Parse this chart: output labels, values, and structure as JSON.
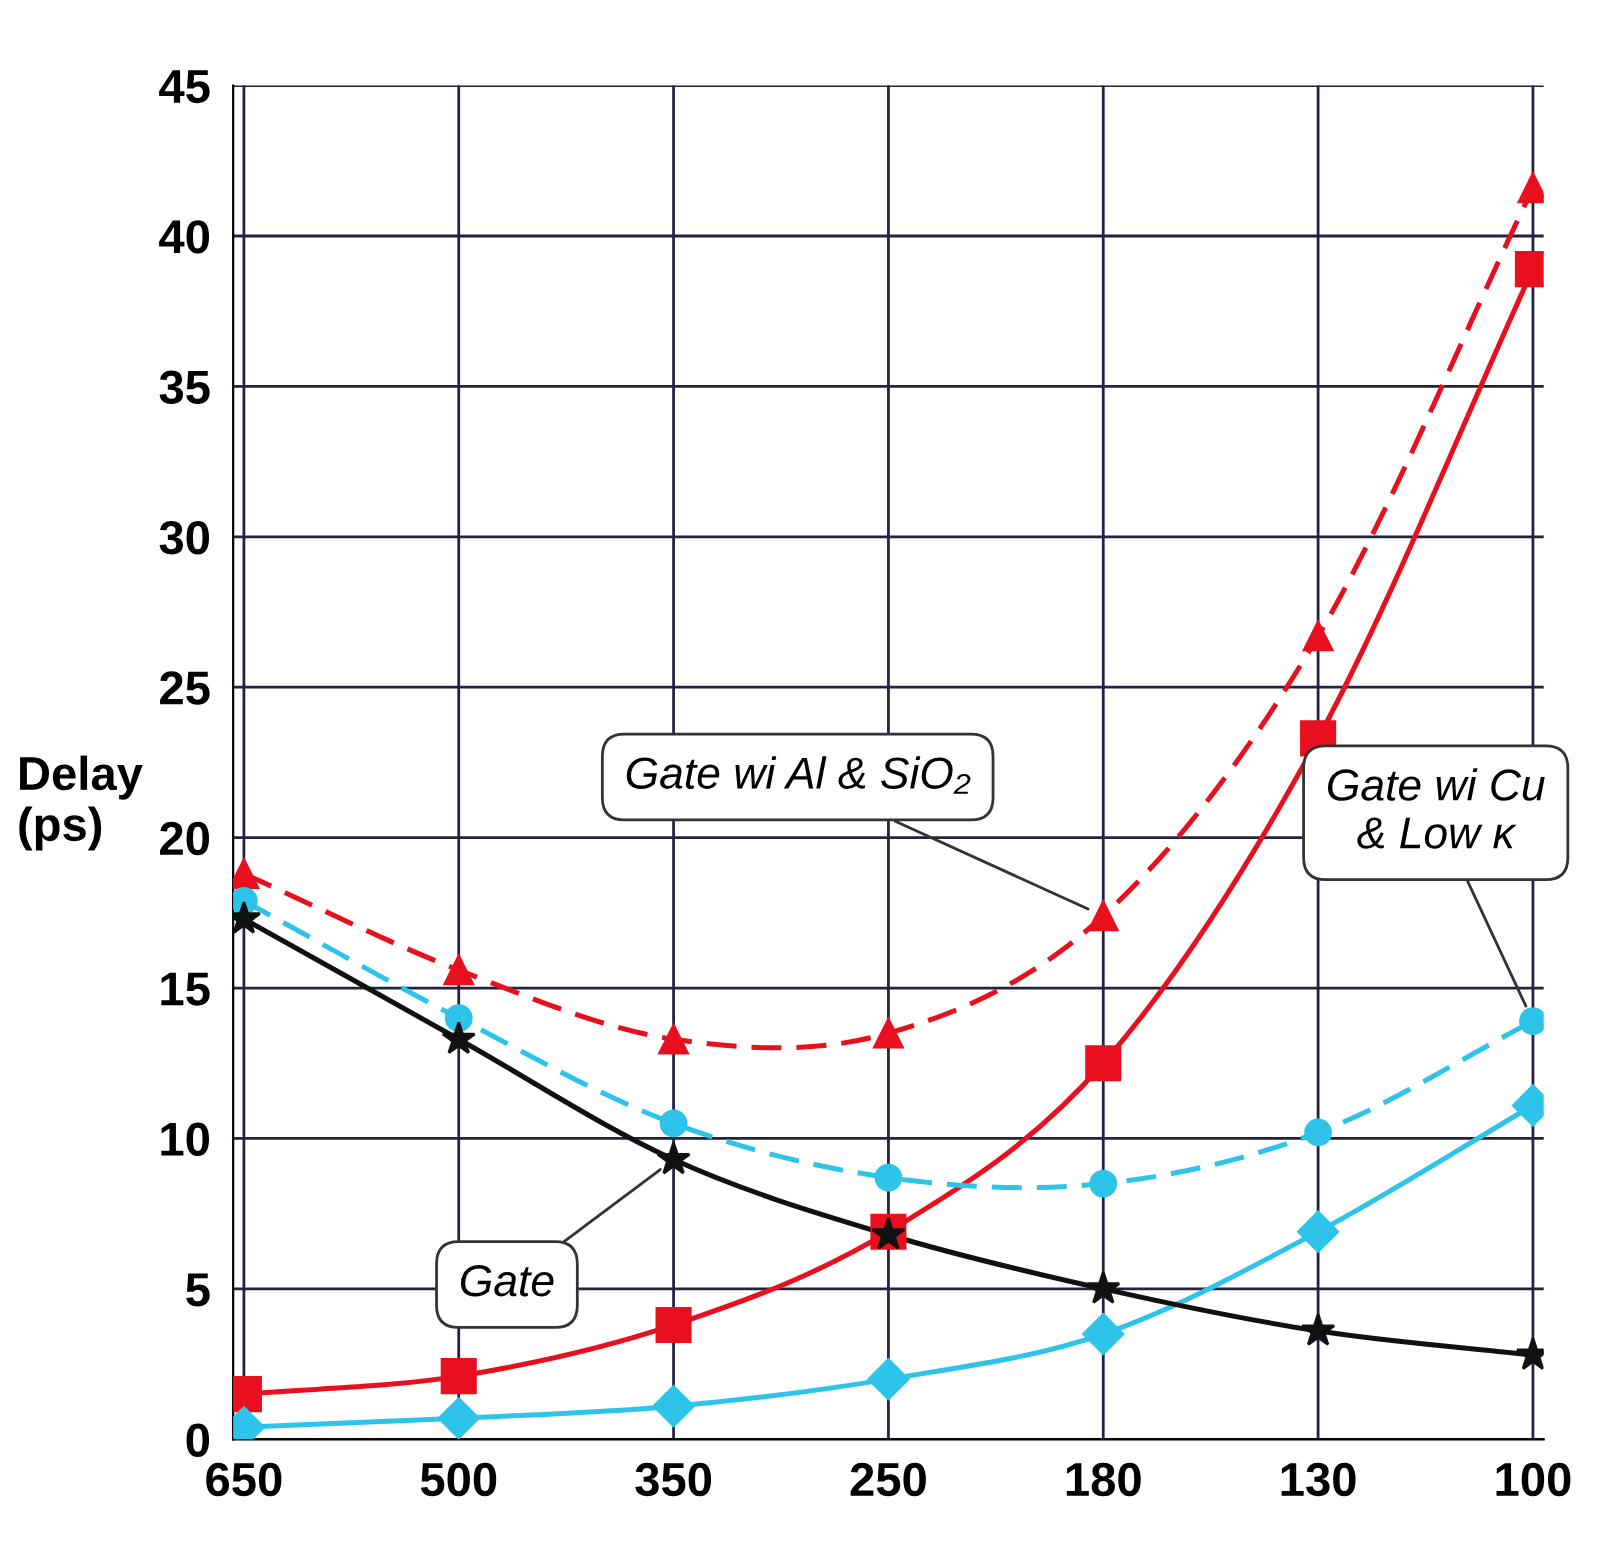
{
  "chart_data": {
    "type": "line",
    "ylabel": "Delay\n(ps)",
    "categories": [
      "650",
      "500",
      "350",
      "250",
      "180",
      "130",
      "100"
    ],
    "series": [
      {
        "color": "#e8101e",
        "marker": "triangle",
        "line_style": "dashed",
        "values": [
          18.8,
          15.6,
          13.3,
          13.5,
          17.4,
          26.7,
          41.6
        ]
      },
      {
        "color": "#e8101e",
        "marker": "square",
        "line_style": "solid",
        "values": [
          1.5,
          2.1,
          3.8,
          6.9,
          12.5,
          23.3,
          38.9
        ]
      },
      {
        "color": "#2ec4ea",
        "marker": "circle",
        "line_style": "dashed",
        "values": [
          17.9,
          14.0,
          10.5,
          8.7,
          8.5,
          10.2,
          13.9
        ]
      },
      {
        "color": "#2ec4ea",
        "marker": "diamond",
        "line_style": "solid",
        "values": [
          0.4,
          0.7,
          1.1,
          2.0,
          3.5,
          6.9,
          11.1
        ]
      },
      {
        "color": "#111111",
        "marker": "star",
        "line_style": "solid",
        "values": [
          17.3,
          13.3,
          9.3,
          6.8,
          5.0,
          3.6,
          2.8
        ]
      }
    ],
    "annotations": [
      {
        "text": "Gate wi Al & SiO₂",
        "x": "180",
        "y": 17.4
      },
      {
        "text": "Gate wi Cu\n& Low κ",
        "x": "100",
        "y": 13.9
      },
      {
        "text": "Gate",
        "x": "350",
        "y": 9.3
      }
    ],
    "ylim": [
      0,
      45
    ],
    "yticks": [
      0,
      5,
      10,
      15,
      20,
      25,
      30,
      35,
      40,
      45
    ],
    "grid": true
  }
}
